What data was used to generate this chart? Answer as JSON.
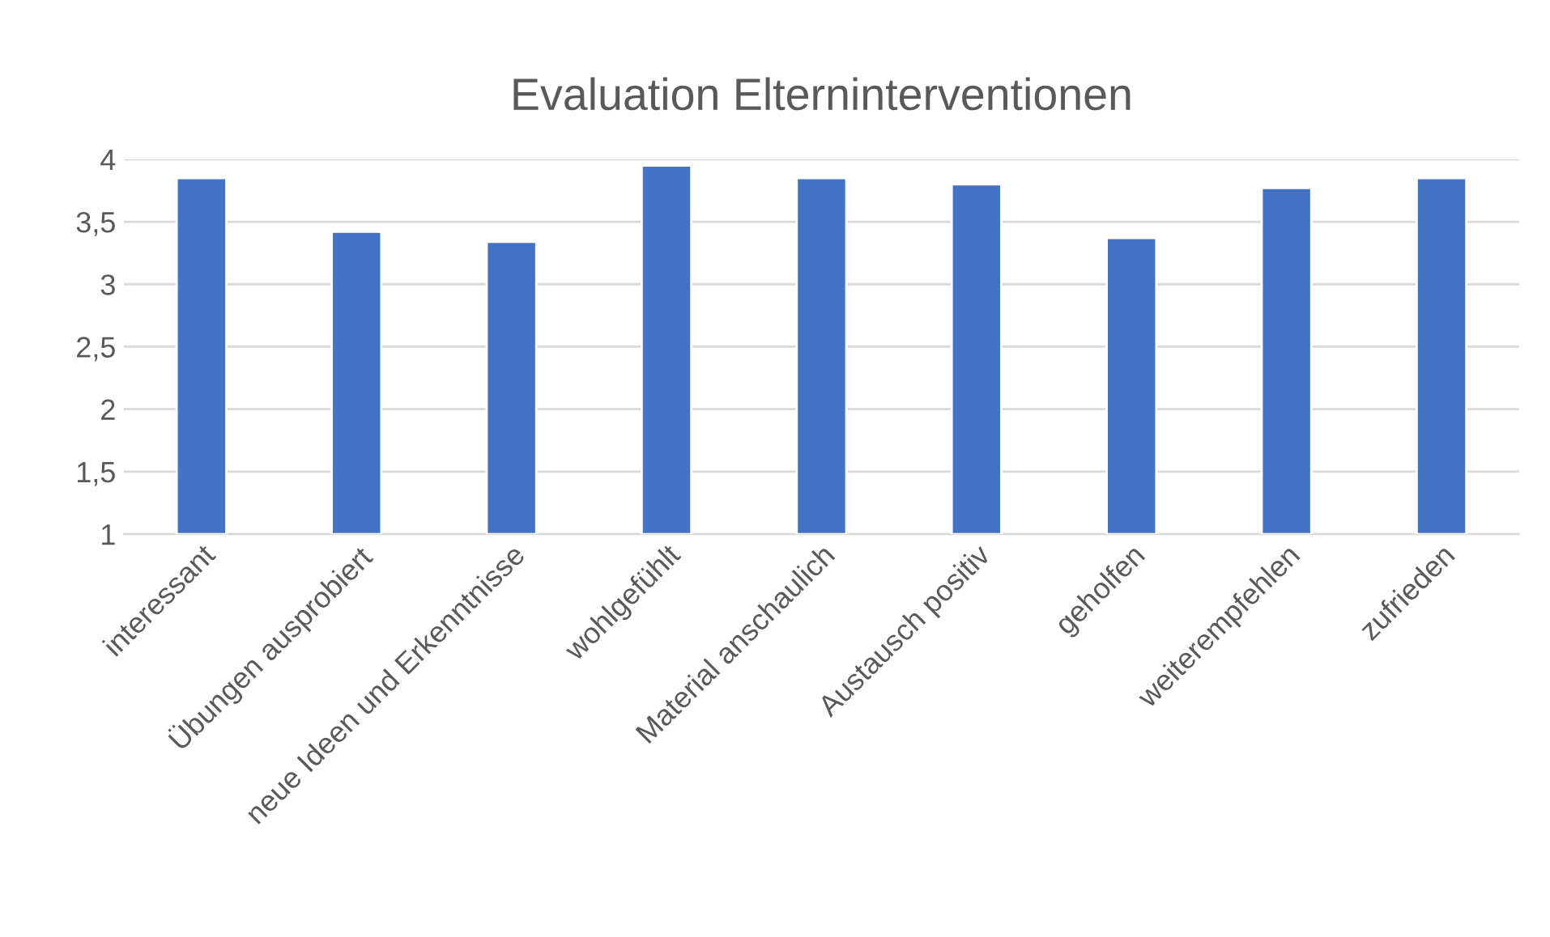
{
  "chart_data": {
    "type": "bar",
    "title": "Evaluation Elterninterventionen",
    "categories": [
      "interessant",
      "Übungen ausprobiert",
      "neue Ideen und Erkenntnisse",
      "wohlgefühlt",
      "Material anschaulich",
      "Austausch positiv",
      "geholfen",
      "weiterempfehlen",
      "zufrieden"
    ],
    "values": [
      3.85,
      3.42,
      3.34,
      3.95,
      3.85,
      3.8,
      3.37,
      3.77,
      3.85
    ],
    "color": "#4472c4",
    "ylim": [
      1,
      4
    ],
    "yticks": [
      1,
      {
        "value": 1.5,
        "label": "1,5"
      },
      2,
      {
        "value": 2.5,
        "label": "2,5"
      },
      3,
      {
        "value": 3.5,
        "label": "3,5"
      },
      4
    ],
    "grid": "y",
    "legend": false
  }
}
